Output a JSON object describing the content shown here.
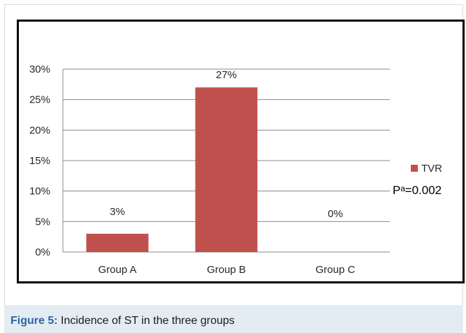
{
  "caption": {
    "label": "Figure 5:",
    "text": "Incidence of ST in the three groups"
  },
  "colors": {
    "bar": "#c0504d",
    "grid": "#8a8a8a",
    "text": "#262626",
    "caption_label": "#2d66a6",
    "caption_bg": "#e3ecf2"
  },
  "chart_data": {
    "type": "bar",
    "categories": [
      "Group A",
      "Group B",
      "Group C"
    ],
    "series": [
      {
        "name": "TVR",
        "values": [
          3,
          27,
          0
        ]
      }
    ],
    "data_labels": [
      "3%",
      "27%",
      "0%"
    ],
    "y_ticks": [
      0,
      5,
      10,
      15,
      20,
      25,
      30
    ],
    "y_tick_labels": [
      "0%",
      "5%",
      "10%",
      "15%",
      "20%",
      "25%",
      "30%"
    ],
    "ylim": [
      0,
      30
    ],
    "grid": true,
    "legend_position": "right",
    "annotation": "Pᵃ=0.002",
    "title": "",
    "xlabel": "",
    "ylabel": ""
  }
}
